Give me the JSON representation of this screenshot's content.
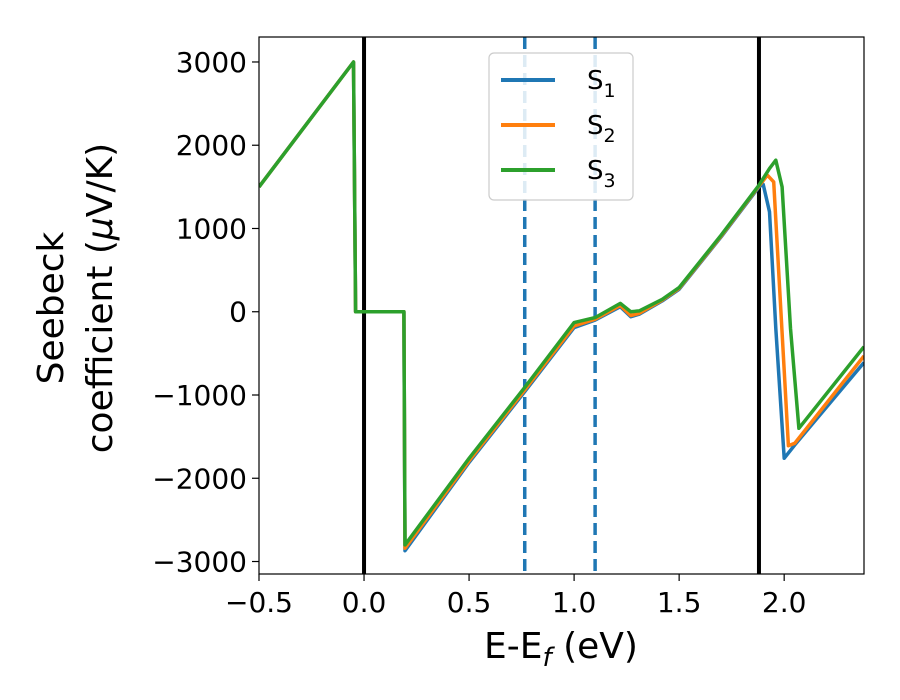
{
  "chart_data": {
    "type": "line",
    "xlabel": "E-E",
    "xlabel_sub": "f",
    "xlabel_unit": " (eV)",
    "ylabel_line1": "Seebeck",
    "ylabel_line2_pre": "coefficient  (",
    "ylabel_line2_mu": "μ",
    "ylabel_line2_post": "V/K)",
    "xlim": [
      -0.5,
      2.38
    ],
    "ylim": [
      -3150,
      3300
    ],
    "xticks": [
      -0.5,
      0.0,
      0.5,
      1.0,
      1.5,
      2.0
    ],
    "xtick_labels": [
      "−0.5",
      "0.0",
      "0.5",
      "1.0",
      "1.5",
      "2.0"
    ],
    "yticks": [
      -3000,
      -2000,
      -1000,
      0,
      1000,
      2000,
      3000
    ],
    "ytick_labels": [
      "−3000",
      "−2000",
      "−1000",
      "0",
      "1000",
      "2000",
      "3000"
    ],
    "grid": false,
    "legend_position": "top-center",
    "vertical_lines": [
      {
        "x": 0.0,
        "style": "solid",
        "color": "#000000"
      },
      {
        "x": 1.88,
        "style": "solid",
        "color": "#000000"
      },
      {
        "x": 0.765,
        "style": "dashed",
        "color": "#1f77b4"
      },
      {
        "x": 1.1,
        "style": "dashed",
        "color": "#1f77b4"
      }
    ],
    "series": [
      {
        "name": "S",
        "name_sub": "1",
        "color": "#1f77b4",
        "x": [
          -0.5,
          -0.05,
          -0.04,
          0.19,
          0.195,
          0.5,
          0.765,
          1.0,
          1.1,
          1.22,
          1.27,
          1.31,
          1.42,
          1.5,
          1.7,
          1.88,
          1.9,
          1.93,
          1.96,
          2.0,
          2.05,
          2.38
        ],
        "y": [
          1500,
          3000,
          0,
          0,
          -2870,
          -1810,
          -960,
          -190,
          -100,
          60,
          -60,
          -30,
          130,
          270,
          900,
          1500,
          1530,
          1200,
          -200,
          -1760,
          -1600,
          -610
        ]
      },
      {
        "name": "S",
        "name_sub": "2",
        "color": "#ff7f0e",
        "x": [
          -0.5,
          -0.05,
          -0.04,
          0.19,
          0.195,
          0.5,
          0.765,
          1.0,
          1.1,
          1.22,
          1.27,
          1.31,
          1.42,
          1.5,
          1.7,
          1.88,
          1.92,
          1.95,
          1.98,
          2.02,
          2.05,
          2.38
        ],
        "y": [
          1500,
          3000,
          0,
          0,
          -2840,
          -1790,
          -940,
          -170,
          -90,
          75,
          -45,
          -20,
          140,
          280,
          910,
          1510,
          1640,
          1560,
          200,
          -1610,
          -1580,
          -530
        ]
      },
      {
        "name": "S",
        "name_sub": "3",
        "color": "#2ca02c",
        "x": [
          -0.5,
          -0.05,
          -0.04,
          0.19,
          0.195,
          0.5,
          0.765,
          1.0,
          1.1,
          1.22,
          1.27,
          1.31,
          1.42,
          1.5,
          1.7,
          1.88,
          1.93,
          1.96,
          1.99,
          2.03,
          2.07,
          2.38
        ],
        "y": [
          1500,
          3000,
          0,
          0,
          -2800,
          -1760,
          -910,
          -130,
          -70,
          100,
          0,
          10,
          150,
          290,
          920,
          1520,
          1720,
          1820,
          1500,
          -200,
          -1400,
          -420
        ]
      }
    ]
  }
}
